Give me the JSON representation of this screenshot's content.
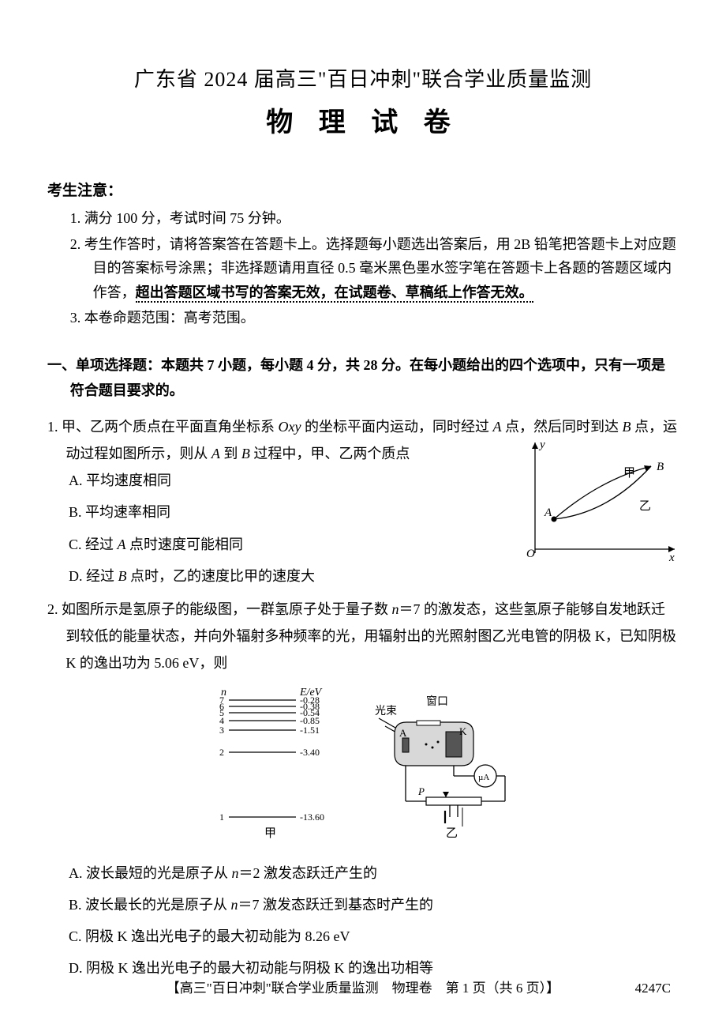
{
  "header": {
    "line1": "广东省 2024 届高三\"百日冲刺\"联合学业质量监测",
    "line2": "物 理 试 卷"
  },
  "notice": {
    "head": "考生注意：",
    "items": [
      {
        "num": "1.",
        "text": "满分 100 分，考试时间 75 分钟。"
      },
      {
        "num": "2.",
        "text_a": "考生作答时，请将答案答在答题卡上。选择题每小题选出答案后，用 2B 铅笔把答题卡上对应题目的答案标号涂黑；非选择题请用直径 0.5 毫米黑色墨水签字笔在答题卡上各题的答题区域内作答，",
        "text_b": "超出答题区域书写的答案无效，在试题卷、草稿纸上作答无效。"
      },
      {
        "num": "3.",
        "text": "本卷命题范围：高考范围。"
      }
    ]
  },
  "section1": {
    "head": "一、单项选择题：本题共 7 小题，每小题 4 分，共 28 分。在每小题给出的四个选项中，只有一项是符合题目要求的。"
  },
  "q1": {
    "num": "1.",
    "stem_a": "甲、乙两个质点在平面直角坐标系 ",
    "stem_oxy": "Oxy",
    "stem_b": " 的坐标平面内运动，同时经过 ",
    "stem_A": "A",
    "stem_c": " 点，然后同时到达 ",
    "stem_B": "B",
    "stem_d": " 点，运动过程如图所示，则从 ",
    "stem_A2": "A",
    "stem_e": " 到 ",
    "stem_B2": "B",
    "stem_f": " 过程中，甲、乙两个质点",
    "opts": {
      "A": "A. 平均速度相同",
      "B": "B. 平均速率相同",
      "C_a": "C. 经过 ",
      "C_A": "A",
      "C_b": " 点时速度可能相同",
      "D_a": "D. 经过 ",
      "D_B": "B",
      "D_b": " 点时，乙的速度比甲的速度大"
    },
    "figure": {
      "labels": {
        "y": "y",
        "x": "x",
        "O": "O",
        "A": "A",
        "B": "B",
        "jia": "甲",
        "yi": "乙"
      }
    }
  },
  "q2": {
    "num": "2.",
    "stem_a": "如图所示是氢原子的能级图，一群氢原子处于量子数 ",
    "stem_n": "n",
    "stem_b": "＝7 的激发态，这些氢原子能够自发地跃迁到较低的能量状态，并向外辐射多种频率的光，用辐射出的光照射图乙光电管的阴极 K，已知阴极 K 的逸出功为 5.06 eV，则",
    "opts": {
      "A_a": "A. 波长最短的光是原子从 ",
      "A_n": "n",
      "A_b": "＝2 激发态跃迁产生的",
      "B_a": "B. 波长最长的光是原子从 ",
      "B_n": "n",
      "B_b": "＝7 激发态跃迁到基态时产生的",
      "C": "C. 阴极 K 逸出光电子的最大初动能为 8.26 eV",
      "D": "D. 阴极 K 逸出光电子的最大初动能与阴极 K 的逸出功相等"
    },
    "energy_diagram": {
      "title_n": "n",
      "title_E": "E/eV",
      "levels": [
        {
          "n": "7",
          "E": "-0.28"
        },
        {
          "n": "6",
          "E": "-0.38"
        },
        {
          "n": "5",
          "E": "-0.54"
        },
        {
          "n": "4",
          "E": "-0.85"
        },
        {
          "n": "3",
          "E": "-1.51"
        },
        {
          "n": "2",
          "E": "-3.40"
        },
        {
          "n": "1",
          "E": "-13.60"
        }
      ],
      "label_jia": "甲",
      "label_yi": "乙",
      "label_light": "光束",
      "label_window": "窗口",
      "label_A": "A",
      "label_K": "K",
      "label_P": "P",
      "label_uA": "µA"
    }
  },
  "footer": {
    "text": "【高三\"百日冲刺\"联合学业质量监测　物理卷　第 1 页（共 6 页）】",
    "code": "4247C"
  },
  "colors": {
    "text": "#000000",
    "bg": "#ffffff",
    "line": "#3a3a3a"
  }
}
